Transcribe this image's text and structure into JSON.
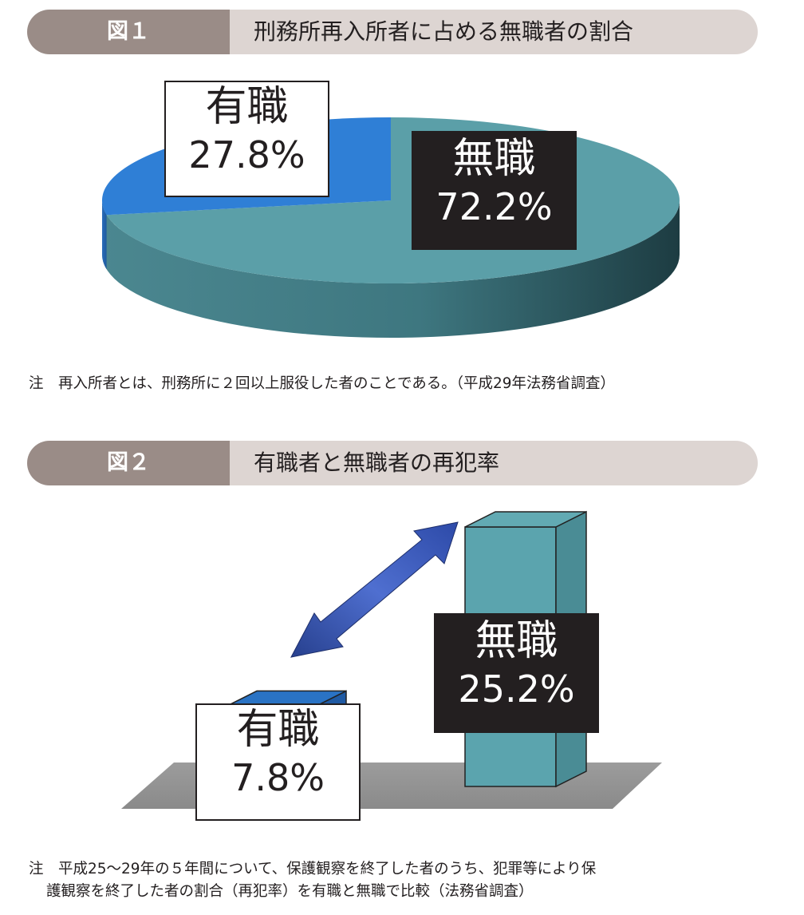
{
  "figure1": {
    "tag": "図１",
    "title": "刑務所再入所者に占める無職者の割合",
    "note": "注　再入所者とは、刑務所に２回以上服役した者のことである。（平成29年法務省調査）"
  },
  "figure2": {
    "tag": "図２",
    "title": "有職者と無職者の再犯率",
    "note_line1": "注　平成25～29年の５年間について、保護観察を終了した者のうち、犯罪等により保",
    "note_line2": "護観察を終了した者の割合（再犯率）を有職と無職で比較（法務省調査）"
  },
  "colors": {
    "employed": "#2f7fd6",
    "unemployed": "#5b9fa8",
    "header_tag": "#9a8c87",
    "header_title": "#ddd5d2"
  },
  "chart_data": [
    {
      "type": "pie",
      "labels": [
        "有職",
        "無職"
      ],
      "values": [
        27.8,
        72.2
      ],
      "value_labels": [
        "27.8%",
        "72.2%"
      ],
      "unit": "%"
    },
    {
      "type": "bar",
      "categories": [
        "有職",
        "無職"
      ],
      "values": [
        7.8,
        25.2
      ],
      "value_labels": [
        "7.8%",
        "25.2%"
      ],
      "unit": "%"
    }
  ]
}
